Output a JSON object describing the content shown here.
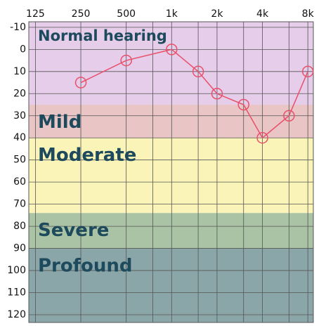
{
  "chart_data": {
    "type": "line",
    "x": [
      250,
      500,
      1000,
      1500,
      2000,
      3000,
      4000,
      6000,
      8000
    ],
    "values": [
      15,
      5,
      0,
      10,
      20,
      25,
      40,
      30,
      10
    ],
    "color": "#e8506a",
    "xlim": [
      113,
      8700
    ],
    "ylim": [
      -12.5,
      123.5
    ],
    "y_inverted": true,
    "x_log": true,
    "xticks": [
      125,
      250,
      500,
      {
        "value": 1000,
        "label": "1k"
      },
      {
        "value": 2000,
        "label": "2k"
      },
      {
        "value": 4000,
        "label": "4k"
      },
      {
        "value": 8000,
        "label": "8k"
      }
    ],
    "x_minor_grid": [
      750,
      1500,
      3000,
      6000
    ],
    "yticks": [
      -10,
      0,
      10,
      20,
      30,
      40,
      50,
      60,
      70,
      80,
      90,
      100,
      110,
      120
    ],
    "grid": true,
    "bands": [
      {
        "name": "Normal hearing",
        "from": -12.5,
        "to": 25,
        "color": "#e6cdea"
      },
      {
        "name": "Mild",
        "from": 25,
        "to": 40,
        "color": "#eac5c6"
      },
      {
        "name": "Moderate",
        "from": 40,
        "to": 74,
        "color": "#fbf4b8"
      },
      {
        "name": "Severe",
        "from": 74,
        "to": 90,
        "color": "#a9c3a4"
      },
      {
        "name": "Profound",
        "from": 90,
        "to": 123.5,
        "color": "#8ba6a8"
      }
    ]
  }
}
